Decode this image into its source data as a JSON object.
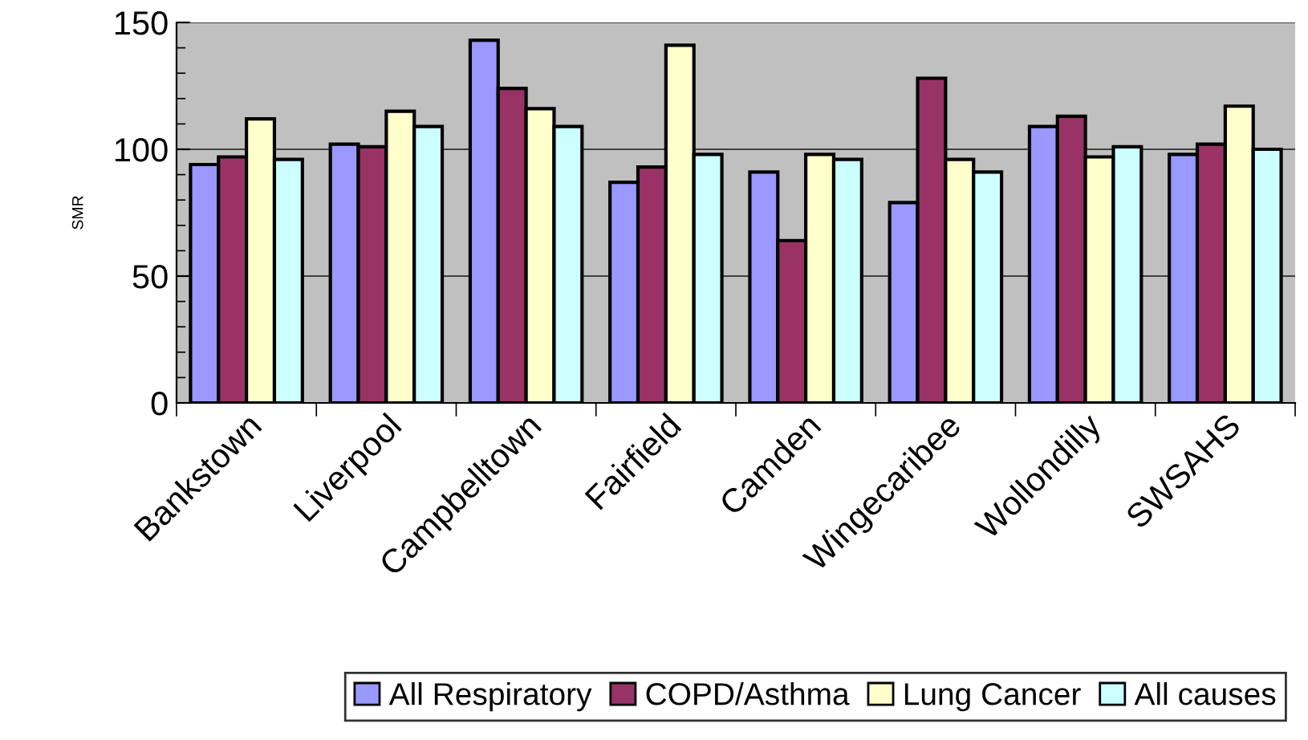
{
  "chart_data": {
    "type": "bar",
    "ylabel": "SMR",
    "categories": [
      "Bankstown",
      "Liverpool",
      "Campbelltown",
      "Fairfield",
      "Camden",
      "Wingecaribee",
      "Wollondilly",
      "SWSAHS"
    ],
    "series": [
      {
        "name": "All Respiratory",
        "color": "#9999ff",
        "values": [
          94,
          102,
          143,
          87,
          91,
          79,
          109,
          98
        ]
      },
      {
        "name": "COPD/Asthma",
        "color": "#993366",
        "values": [
          97,
          101,
          124,
          93,
          64,
          128,
          113,
          102
        ]
      },
      {
        "name": "Lung Cancer",
        "color": "#ffffcc",
        "values": [
          112,
          115,
          116,
          141,
          98,
          96,
          97,
          117
        ]
      },
      {
        "name": "All causes",
        "color": "#ccffff",
        "values": [
          96,
          109,
          109,
          98,
          96,
          91,
          101,
          100
        ]
      }
    ],
    "ylim": [
      0,
      150
    ],
    "yticks": [
      0,
      50,
      100,
      150
    ],
    "grid": "y",
    "legend": "bottom"
  }
}
